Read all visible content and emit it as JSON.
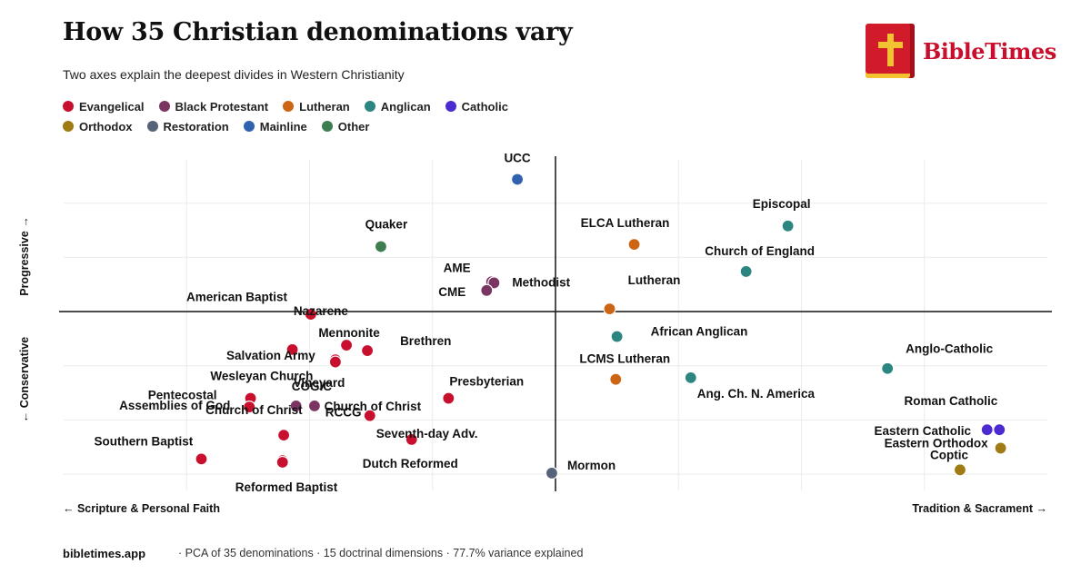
{
  "title": "How 35 Christian denominations vary",
  "subtitle": "Two axes explain the deepest divides in Western Christianity",
  "brand": "BibleTimes",
  "footer": {
    "site": "bibletimes.app",
    "note": "· PCA of 35 denominations · 15 doctrinal dimensions · 77.7% variance explained"
  },
  "colors": {
    "Evangelical": "#c8102e",
    "Black Protestant": "#7b3563",
    "Lutheran": "#cc6514",
    "Anglican": "#2b8580",
    "Catholic": "#4b2bd1",
    "Orthodox": "#a07a12",
    "Restoration": "#556279",
    "Mainline": "#2f63b0",
    "Other": "#3d7d50"
  },
  "legend": [
    [
      "Evangelical",
      "Black Protestant",
      "Lutheran",
      "Anglican",
      "Catholic"
    ],
    [
      "Orthodox",
      "Restoration",
      "Mainline",
      "Other"
    ]
  ],
  "chart_data": {
    "type": "scatter",
    "xlabel_left": "← Scripture & Personal Faith",
    "xlabel_right": "Tradition & Sacrament →",
    "ylabel_top": "Progressive →",
    "ylabel_bottom": "← Conservative",
    "xlim": [
      -4,
      4
    ],
    "ylim": [
      -3.3,
      2.8
    ],
    "grid": true,
    "legend_position": "top-left",
    "points": [
      {
        "name": "UCC",
        "group": "Mainline",
        "x": -0.31,
        "y": 2.44
      },
      {
        "name": "Episcopal",
        "group": "Anglican",
        "x": 1.89,
        "y": 1.58
      },
      {
        "name": "ELCA Lutheran",
        "group": "Lutheran",
        "x": 0.64,
        "y": 1.24
      },
      {
        "name": "Church of England",
        "group": "Anglican",
        "x": 1.55,
        "y": 0.74
      },
      {
        "name": "Quaker",
        "group": "Other",
        "x": -1.42,
        "y": 1.2
      },
      {
        "name": "AME",
        "group": "Black Protestant",
        "x": -0.52,
        "y": 0.55
      },
      {
        "name": "Methodist",
        "group": "Black Protestant",
        "x": -0.5,
        "y": 0.53
      },
      {
        "name": "CME",
        "group": "Black Protestant",
        "x": -0.56,
        "y": 0.39
      },
      {
        "name": "Lutheran",
        "group": "Lutheran",
        "x": 0.44,
        "y": 0.05
      },
      {
        "name": "American Baptist",
        "group": "Evangelical",
        "x": -2.0,
        "y": -0.04
      },
      {
        "name": "Nazarene",
        "group": "Evangelical",
        "x": -1.99,
        "y": -0.05
      },
      {
        "name": "African Anglican",
        "group": "Anglican",
        "x": 0.5,
        "y": -0.46
      },
      {
        "name": "Mennonite",
        "group": "Evangelical",
        "x": -1.7,
        "y": -0.62
      },
      {
        "name": "Brethren",
        "group": "Evangelical",
        "x": -1.53,
        "y": -0.72
      },
      {
        "name": "Salvation Army",
        "group": "Evangelical",
        "x": -1.79,
        "y": -0.89
      },
      {
        "name": "Wesleyan Church",
        "group": "Evangelical",
        "x": -1.79,
        "y": -0.93
      },
      {
        "name": "Vineyard",
        "group": "Evangelical",
        "x": -2.14,
        "y": -0.7
      },
      {
        "name": "Anglo-Catholic",
        "group": "Anglican",
        "x": 2.7,
        "y": -1.05
      },
      {
        "name": "LCMS Lutheran",
        "group": "Lutheran",
        "x": 0.49,
        "y": -1.25
      },
      {
        "name": "Ang. Ch. N. America",
        "group": "Anglican",
        "x": 1.1,
        "y": -1.22
      },
      {
        "name": "Presbyterian",
        "group": "Evangelical",
        "x": -0.87,
        "y": -1.6
      },
      {
        "name": "Pentecostal",
        "group": "Evangelical",
        "x": -2.48,
        "y": -1.6
      },
      {
        "name": "Assemblies of God",
        "group": "Evangelical",
        "x": -2.49,
        "y": -1.76
      },
      {
        "name": "COGIC",
        "group": "Black Protestant",
        "x": -1.96,
        "y": -1.74
      },
      {
        "name": "Church of Christ",
        "group": "Black Protestant",
        "x": -2.11,
        "y": -1.74
      },
      {
        "name": "RCCG",
        "group": "Evangelical",
        "x": -1.51,
        "y": -1.92
      },
      {
        "name": "Roman Catholic",
        "group": "Catholic",
        "x": 3.61,
        "y": -2.18
      },
      {
        "name": "Eastern Catholic",
        "group": "Catholic",
        "x": 3.51,
        "y": -2.18
      },
      {
        "name": "Eastern Orthodox",
        "group": "Orthodox",
        "x": 3.62,
        "y": -2.52
      },
      {
        "name": "Coptic",
        "group": "Orthodox",
        "x": 3.29,
        "y": -2.92
      },
      {
        "name": "Seventh-day Adv.",
        "group": "Evangelical",
        "x": -1.17,
        "y": -2.36
      },
      {
        "name": "Southern Baptist",
        "group": "Evangelical",
        "x": -2.88,
        "y": -2.72
      },
      {
        "name": "Reformed Baptist",
        "group": "Evangelical",
        "x": -2.22,
        "y": -2.75
      },
      {
        "name": "Church of Christ",
        "group": "Evangelical",
        "x": -2.21,
        "y": -2.28
      },
      {
        "name": "Dutch Reformed",
        "group": "Evangelical",
        "x": -2.22,
        "y": -2.78
      },
      {
        "name": "Mormon",
        "group": "Restoration",
        "x": -0.03,
        "y": -2.98
      }
    ]
  }
}
